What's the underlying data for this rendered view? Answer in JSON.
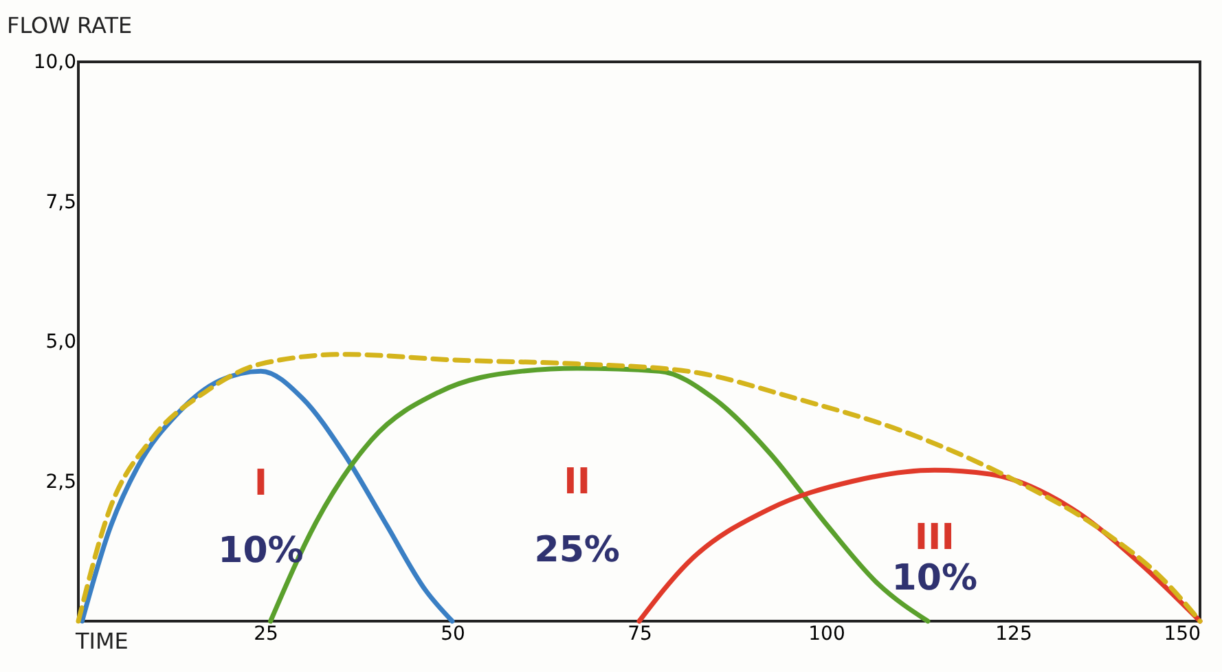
{
  "chart_data": {
    "type": "line",
    "xlabel": "TIME",
    "ylabel": "FLOW RATE",
    "xlim": [
      0,
      150
    ],
    "ylim": [
      0,
      10
    ],
    "xticks": [
      25,
      50,
      75,
      100,
      125,
      150
    ],
    "yticks": [
      {
        "value": 0,
        "label": null
      },
      {
        "value": 2.5,
        "label": "2,5"
      },
      {
        "value": 5,
        "label": "5,0"
      },
      {
        "value": 7.5,
        "label": "7,5"
      },
      {
        "value": 10,
        "label": "10,0"
      }
    ],
    "grid": false,
    "marker": "none",
    "series": [
      {
        "color": "#3a7fc4",
        "line_style": "solid",
        "x": [
          0.5,
          4.2,
          7.9,
          13.4,
          18.9,
          24.4,
          30,
          35.5,
          41,
          46.5,
          50
        ],
        "values": [
          0,
          1.65,
          2.75,
          3.73,
          4.3,
          4.47,
          3.98,
          3.0,
          1.77,
          0.54,
          0
        ]
      },
      {
        "color": "#5aa02c",
        "line_style": "solid",
        "x": [
          25.7,
          31.8,
          39.2,
          48.3,
          59.4,
          66.7,
          77.7,
          85,
          92.5,
          99.8,
          107,
          113.6
        ],
        "values": [
          0,
          1.77,
          3.24,
          4.1,
          4.47,
          4.52,
          4.47,
          3.98,
          3.0,
          1.77,
          0.66,
          0
        ]
      },
      {
        "color": "#e03a2a",
        "line_style": "solid",
        "x": [
          75,
          81.4,
          92.5,
          103.5,
          114.5,
          121.9,
          132.9,
          142,
          150
        ],
        "values": [
          0,
          1.03,
          2.01,
          2.5,
          2.7,
          2.63,
          2.01,
          1.03,
          0
        ]
      },
      {
        "color": "#d4b41c",
        "line_style": "dashed",
        "x": [
          0,
          4.2,
          9.7,
          17,
          24.4,
          35.5,
          50.2,
          66.7,
          81.4,
          96,
          110.8,
          125.5,
          136.6,
          145.7,
          150
        ],
        "values": [
          0,
          2.0,
          3.24,
          4.1,
          4.6,
          4.77,
          4.67,
          4.6,
          4.47,
          3.98,
          3.37,
          2.5,
          1.65,
          0.66,
          0
        ]
      }
    ],
    "annotations": [
      "I",
      "10%",
      "II",
      "25%",
      "III",
      "10%"
    ]
  }
}
